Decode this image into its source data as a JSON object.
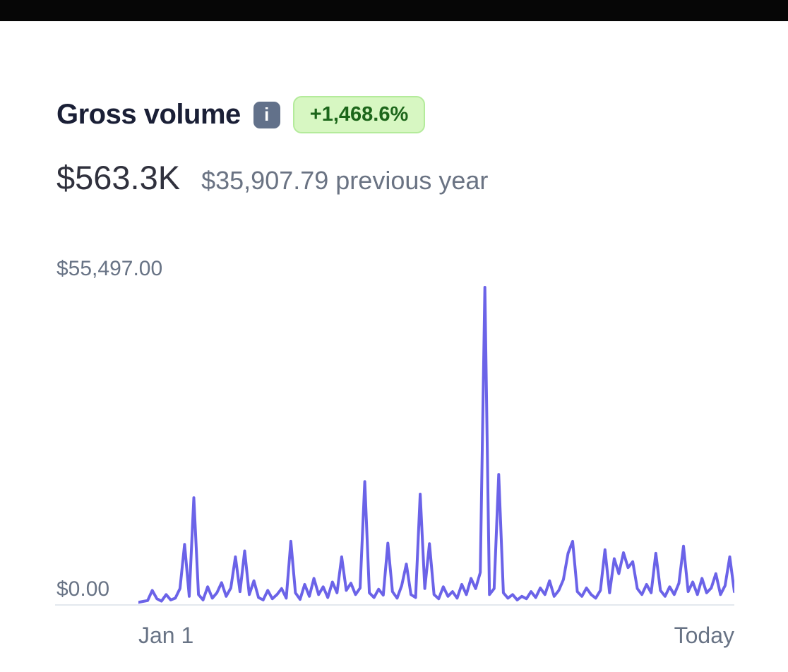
{
  "header": {
    "title": "Gross volume",
    "info_glyph": "i",
    "badge": "+1,468.6%",
    "badge_bg": "#d7f7c2",
    "badge_text_color": "#1c661a"
  },
  "summary": {
    "current_value": "$563.3K",
    "previous_value": "$35,907.79 previous year"
  },
  "chart_data": {
    "type": "line",
    "title": "Gross volume",
    "x_axis_labels": {
      "start": "Jan 1",
      "end": "Today"
    },
    "y_axis_labels": {
      "max": "$55,497.00",
      "min": "$0.00"
    },
    "ylim": [
      0,
      55497
    ],
    "grid": false,
    "legend": false,
    "line_color": "#6b63e8",
    "axis_color": "#e3e8ee",
    "values": [
      200,
      350,
      500,
      2200,
      800,
      400,
      1500,
      600,
      900,
      2500,
      9900,
      1200,
      17700,
      1500,
      600,
      2800,
      900,
      1800,
      3500,
      1200,
      2600,
      7800,
      2000,
      8800,
      1500,
      3800,
      1000,
      600,
      2200,
      800,
      1500,
      2500,
      900,
      10400,
      1800,
      700,
      3200,
      1200,
      4200,
      1500,
      2800,
      1000,
      3600,
      1800,
      7800,
      2200,
      3400,
      1500,
      2600,
      20400,
      1800,
      1000,
      2400,
      1400,
      10100,
      2000,
      900,
      3000,
      6600,
      1500,
      1000,
      18300,
      2500,
      10000,
      1500,
      800,
      2800,
      1200,
      2000,
      900,
      3200,
      1500,
      4200,
      2500,
      5200,
      52900,
      1500,
      2500,
      21600,
      1800,
      900,
      1500,
      600,
      1200,
      800,
      2000,
      1000,
      2600,
      1500,
      3800,
      1200,
      2200,
      4000,
      8400,
      10400,
      2000,
      1200,
      2600,
      1500,
      900,
      2200,
      9000,
      1800,
      7500,
      5000,
      8500,
      6000,
      7000,
      2500,
      1500,
      3200,
      1800,
      8400,
      2200,
      1200,
      2800,
      1500,
      3400,
      9600,
      2000,
      3600,
      1500,
      4200,
      1800,
      2600,
      5000,
      1500,
      3000,
      7800,
      2000
    ]
  }
}
